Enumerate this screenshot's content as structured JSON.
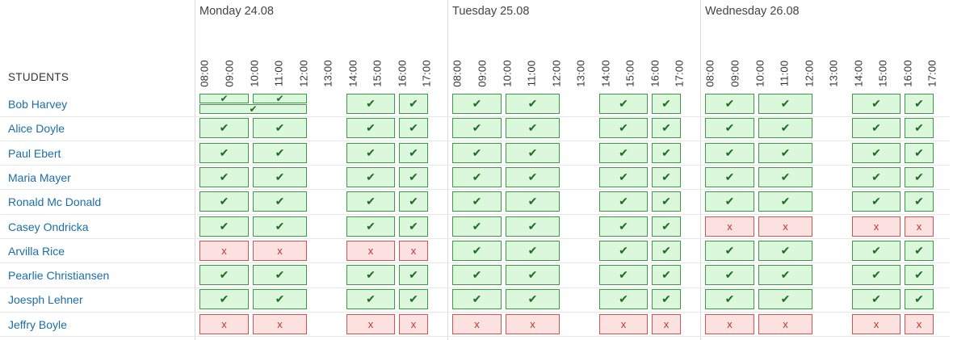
{
  "header": {
    "students_label": "STUDENTS"
  },
  "days": [
    {
      "label": "Monday 24.08"
    },
    {
      "label": "Tuesday 25.08"
    },
    {
      "label": "Wednesday 26.08"
    }
  ],
  "times": [
    "08:00",
    "09:00",
    "10:00",
    "11:00",
    "12:00",
    "13:00",
    "14:00",
    "15:00",
    "16:00",
    "17:00"
  ],
  "slot_groups": [
    "08:00-10:00",
    "10:00-12:00",
    "14:00-16:00",
    "16:00-17:00"
  ],
  "marks": {
    "ok": "✔",
    "no": "x"
  },
  "colors": {
    "ok_fill": "#dbf7dc",
    "ok_border": "#3c9a44",
    "no_fill": "#fbe1e0",
    "no_border": "#d15450",
    "link": "#1a6ea8"
  },
  "students": [
    {
      "name": "Bob Harvey",
      "status": [
        [
          "split",
          "split",
          "ok",
          "ok"
        ],
        [
          "ok",
          "ok",
          "ok",
          "ok"
        ],
        [
          "ok",
          "ok",
          "ok",
          "ok"
        ]
      ]
    },
    {
      "name": "Alice Doyle",
      "status": [
        [
          "ok",
          "ok",
          "ok",
          "ok"
        ],
        [
          "ok",
          "ok",
          "ok",
          "ok"
        ],
        [
          "ok",
          "ok",
          "ok",
          "ok"
        ]
      ]
    },
    {
      "name": "Paul Ebert",
      "status": [
        [
          "ok",
          "ok",
          "ok",
          "ok"
        ],
        [
          "ok",
          "ok",
          "ok",
          "ok"
        ],
        [
          "ok",
          "ok",
          "ok",
          "ok"
        ]
      ]
    },
    {
      "name": "Maria Mayer",
      "status": [
        [
          "ok",
          "ok",
          "ok",
          "ok"
        ],
        [
          "ok",
          "ok",
          "ok",
          "ok"
        ],
        [
          "ok",
          "ok",
          "ok",
          "ok"
        ]
      ]
    },
    {
      "name": "Ronald Mc Donald",
      "status": [
        [
          "ok",
          "ok",
          "ok",
          "ok"
        ],
        [
          "ok",
          "ok",
          "ok",
          "ok"
        ],
        [
          "ok",
          "ok",
          "ok",
          "ok"
        ]
      ]
    },
    {
      "name": "Casey Ondricka",
      "status": [
        [
          "ok",
          "ok",
          "ok",
          "ok"
        ],
        [
          "ok",
          "ok",
          "ok",
          "ok"
        ],
        [
          "no",
          "no",
          "no",
          "no"
        ]
      ]
    },
    {
      "name": "Arvilla Rice",
      "status": [
        [
          "no",
          "no",
          "no",
          "no"
        ],
        [
          "ok",
          "ok",
          "ok",
          "ok"
        ],
        [
          "ok",
          "ok",
          "ok",
          "ok"
        ]
      ]
    },
    {
      "name": "Pearlie Christiansen",
      "status": [
        [
          "ok",
          "ok",
          "ok",
          "ok"
        ],
        [
          "ok",
          "ok",
          "ok",
          "ok"
        ],
        [
          "ok",
          "ok",
          "ok",
          "ok"
        ]
      ]
    },
    {
      "name": "Joesph Lehner",
      "status": [
        [
          "ok",
          "ok",
          "ok",
          "ok"
        ],
        [
          "ok",
          "ok",
          "ok",
          "ok"
        ],
        [
          "ok",
          "ok",
          "ok",
          "ok"
        ]
      ]
    },
    {
      "name": "Jeffry Boyle",
      "status": [
        [
          "no",
          "no",
          "no",
          "no"
        ],
        [
          "no",
          "no",
          "no",
          "no"
        ],
        [
          "no",
          "no",
          "no",
          "no"
        ]
      ]
    }
  ]
}
